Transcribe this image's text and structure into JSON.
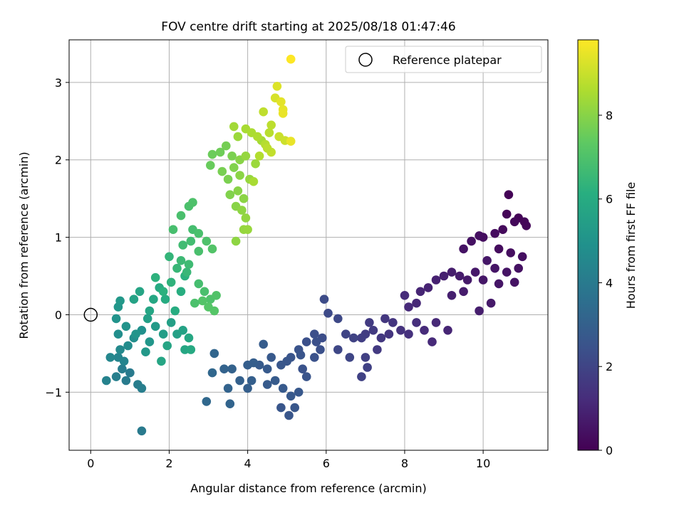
{
  "chart_data": {
    "type": "scatter",
    "title": "FOV centre drift starting at 2025/08/18 01:47:46",
    "xlabel": "Angular distance from reference (arcmin)",
    "ylabel": "Rotation from reference (arcmin)",
    "xlim": [
      -0.55,
      11.65
    ],
    "ylim": [
      -1.75,
      3.55
    ],
    "xticks": [
      0,
      2,
      4,
      6,
      8,
      10
    ],
    "yticks": [
      -1,
      0,
      1,
      2,
      3
    ],
    "xtick_labels": [
      "0",
      "2",
      "4",
      "6",
      "8",
      "10"
    ],
    "ytick_labels": [
      "−1",
      "0",
      "1",
      "2",
      "3"
    ],
    "grid": true,
    "legend": {
      "position": "top-right",
      "entries": [
        "Reference platepar"
      ]
    },
    "reference_point": {
      "x": 0,
      "y": 0
    },
    "colorbar": {
      "label": "Hours from first FF file",
      "colormap": "viridis",
      "range": [
        0,
        9.8
      ],
      "ticks": [
        0,
        2,
        4,
        6,
        8
      ],
      "tick_labels": [
        "0",
        "2",
        "4",
        "6",
        "8"
      ]
    },
    "series": [
      {
        "color_by": "hours",
        "points": [
          [
            10.65,
            1.55,
            0.05
          ],
          [
            10.6,
            1.3,
            0.1
          ],
          [
            10.9,
            1.25,
            0.1
          ],
          [
            11.05,
            1.2,
            0.15
          ],
          [
            11.1,
            1.15,
            0.15
          ],
          [
            10.8,
            1.2,
            0.2
          ],
          [
            10.5,
            1.1,
            0.25
          ],
          [
            10.3,
            1.05,
            0.3
          ],
          [
            10.0,
            1.0,
            0.35
          ],
          [
            9.9,
            1.02,
            0.4
          ],
          [
            9.7,
            0.95,
            0.45
          ],
          [
            9.5,
            0.85,
            0.5
          ],
          [
            10.4,
            0.85,
            0.3
          ],
          [
            10.7,
            0.8,
            0.35
          ],
          [
            11.0,
            0.75,
            0.4
          ],
          [
            10.9,
            0.6,
            0.45
          ],
          [
            10.6,
            0.55,
            0.5
          ],
          [
            10.3,
            0.6,
            0.55
          ],
          [
            10.1,
            0.7,
            0.6
          ],
          [
            9.8,
            0.55,
            0.65
          ],
          [
            9.6,
            0.45,
            0.7
          ],
          [
            9.4,
            0.5,
            0.75
          ],
          [
            9.2,
            0.55,
            0.8
          ],
          [
            9.0,
            0.5,
            0.85
          ],
          [
            8.8,
            0.45,
            0.9
          ],
          [
            8.6,
            0.35,
            0.95
          ],
          [
            8.4,
            0.3,
            1.0
          ],
          [
            8.3,
            0.15,
            1.1
          ],
          [
            8.1,
            0.1,
            1.15
          ],
          [
            8.0,
            0.25,
            1.2
          ],
          [
            9.2,
            0.25,
            0.85
          ],
          [
            9.5,
            0.3,
            0.75
          ],
          [
            10.0,
            0.45,
            0.6
          ],
          [
            10.4,
            0.4,
            0.55
          ],
          [
            10.8,
            0.42,
            0.5
          ],
          [
            10.2,
            0.15,
            0.7
          ],
          [
            9.9,
            0.05,
            0.8
          ],
          [
            9.1,
            -0.2,
            1.0
          ],
          [
            8.8,
            -0.1,
            1.1
          ],
          [
            8.7,
            -0.35,
            1.15
          ],
          [
            8.5,
            -0.2,
            1.2
          ],
          [
            8.3,
            -0.1,
            1.3
          ],
          [
            8.1,
            -0.25,
            1.35
          ],
          [
            7.9,
            -0.2,
            1.4
          ],
          [
            7.7,
            -0.1,
            1.5
          ],
          [
            7.5,
            -0.05,
            1.55
          ],
          [
            7.6,
            -0.25,
            1.5
          ],
          [
            7.4,
            -0.3,
            1.6
          ],
          [
            7.3,
            -0.45,
            1.65
          ],
          [
            7.2,
            -0.2,
            1.7
          ],
          [
            7.0,
            -0.25,
            1.75
          ],
          [
            6.9,
            -0.3,
            1.8
          ],
          [
            7.0,
            -0.55,
            1.85
          ],
          [
            6.9,
            -0.8,
            1.9
          ],
          [
            7.1,
            -0.1,
            1.7
          ],
          [
            6.7,
            -0.3,
            1.95
          ],
          [
            6.5,
            -0.25,
            2.0
          ],
          [
            6.3,
            -0.45,
            2.1
          ],
          [
            6.6,
            -0.55,
            2.05
          ],
          [
            7.05,
            -0.68,
            1.9
          ],
          [
            5.95,
            0.2,
            2.25
          ],
          [
            6.05,
            0.02,
            2.2
          ],
          [
            6.3,
            -0.05,
            2.15
          ],
          [
            5.9,
            -0.3,
            2.3
          ],
          [
            5.7,
            -0.25,
            2.35
          ],
          [
            5.5,
            -0.35,
            2.4
          ],
          [
            5.3,
            -0.45,
            2.5
          ],
          [
            5.1,
            -0.55,
            2.55
          ],
          [
            5.0,
            -0.6,
            2.6
          ],
          [
            4.85,
            -0.65,
            2.65
          ],
          [
            4.6,
            -0.55,
            2.7
          ],
          [
            4.5,
            -0.7,
            2.75
          ],
          [
            4.3,
            -0.65,
            2.8
          ],
          [
            4.5,
            -0.9,
            2.8
          ],
          [
            4.7,
            -0.85,
            2.78
          ],
          [
            4.9,
            -0.95,
            2.75
          ],
          [
            5.1,
            -1.05,
            2.7
          ],
          [
            5.3,
            -1.0,
            2.68
          ],
          [
            5.2,
            -1.2,
            2.65
          ],
          [
            5.05,
            -1.3,
            2.6
          ],
          [
            4.85,
            -1.2,
            2.62
          ],
          [
            5.5,
            -0.8,
            2.55
          ],
          [
            5.4,
            -0.7,
            2.5
          ],
          [
            5.7,
            -0.55,
            2.45
          ],
          [
            5.85,
            -0.45,
            2.4
          ],
          [
            4.0,
            -0.65,
            2.9
          ],
          [
            4.0,
            -0.95,
            2.95
          ],
          [
            3.8,
            -0.85,
            3.0
          ],
          [
            3.6,
            -0.7,
            3.05
          ],
          [
            3.5,
            -0.95,
            3.1
          ],
          [
            3.4,
            -0.7,
            3.1
          ],
          [
            3.55,
            -1.15,
            3.15
          ],
          [
            3.15,
            -0.5,
            3.2
          ],
          [
            3.1,
            -0.75,
            3.25
          ],
          [
            2.95,
            -1.12,
            3.3
          ],
          [
            4.1,
            -0.85,
            2.95
          ],
          [
            4.4,
            -0.38,
            2.85
          ],
          [
            5.35,
            -0.52,
            2.55
          ],
          [
            4.15,
            -0.62,
            2.92
          ],
          [
            5.75,
            -0.35,
            2.4
          ],
          [
            0.4,
            -0.85,
            4.3
          ],
          [
            0.65,
            -0.8,
            4.2
          ],
          [
            0.8,
            -0.7,
            4.1
          ],
          [
            1.0,
            -0.75,
            4.0
          ],
          [
            1.2,
            -0.9,
            4.1
          ],
          [
            1.3,
            -0.95,
            4.15
          ],
          [
            1.3,
            -1.5,
            4.0
          ],
          [
            0.9,
            -0.85,
            4.05
          ],
          [
            0.7,
            -0.55,
            4.4
          ],
          [
            0.5,
            -0.55,
            4.5
          ],
          [
            0.75,
            -0.45,
            4.6
          ],
          [
            0.95,
            -0.4,
            4.7
          ],
          [
            1.1,
            -0.3,
            4.8
          ],
          [
            1.3,
            -0.2,
            4.9
          ],
          [
            0.7,
            -0.25,
            4.8
          ],
          [
            0.65,
            -0.05,
            5.0
          ],
          [
            0.7,
            0.1,
            5.1
          ],
          [
            0.9,
            -0.15,
            5.0
          ],
          [
            1.15,
            -0.25,
            5.05
          ],
          [
            1.5,
            -0.35,
            5.1
          ],
          [
            1.4,
            -0.48,
            5.2
          ],
          [
            1.65,
            -0.15,
            5.3
          ],
          [
            1.85,
            -0.25,
            5.4
          ],
          [
            2.05,
            -0.1,
            5.5
          ],
          [
            2.2,
            -0.25,
            5.55
          ],
          [
            2.35,
            -0.2,
            5.6
          ],
          [
            1.95,
            -0.4,
            5.7
          ],
          [
            1.8,
            -0.6,
            5.75
          ],
          [
            2.4,
            -0.45,
            5.8
          ],
          [
            2.5,
            -0.3,
            5.85
          ],
          [
            1.1,
            0.2,
            5.6
          ],
          [
            1.25,
            0.3,
            5.7
          ],
          [
            1.5,
            0.05,
            5.75
          ],
          [
            1.6,
            0.2,
            5.85
          ],
          [
            1.75,
            0.35,
            5.95
          ],
          [
            1.9,
            0.2,
            6.0
          ],
          [
            2.15,
            0.05,
            6.05
          ],
          [
            2.3,
            0.3,
            6.1
          ],
          [
            2.4,
            0.5,
            6.2
          ],
          [
            1.65,
            0.48,
            6.25
          ],
          [
            2.05,
            0.42,
            6.3
          ],
          [
            0.75,
            0.18,
            5.2
          ],
          [
            1.45,
            -0.05,
            5.5
          ],
          [
            0.85,
            -0.6,
            4.4
          ],
          [
            2.55,
            -0.45,
            5.9
          ],
          [
            2.0,
            0.75,
            6.4
          ],
          [
            2.2,
            0.6,
            6.5
          ],
          [
            2.3,
            0.7,
            6.6
          ],
          [
            2.5,
            0.65,
            6.65
          ],
          [
            2.35,
            0.9,
            6.7
          ],
          [
            2.55,
            0.95,
            6.75
          ],
          [
            2.6,
            1.1,
            6.8
          ],
          [
            2.1,
            1.1,
            6.85
          ],
          [
            2.3,
            1.28,
            6.9
          ],
          [
            2.5,
            1.4,
            6.95
          ],
          [
            2.6,
            1.45,
            7.0
          ],
          [
            2.75,
            0.4,
            6.8
          ],
          [
            2.9,
            0.3,
            6.9
          ],
          [
            3.05,
            0.2,
            7.0
          ],
          [
            3.2,
            0.25,
            7.05
          ],
          [
            2.85,
            0.18,
            7.1
          ],
          [
            3.0,
            0.1,
            7.15
          ],
          [
            2.75,
            0.82,
            6.9
          ],
          [
            2.95,
            0.95,
            7.0
          ],
          [
            3.1,
            0.85,
            7.1
          ],
          [
            3.15,
            0.05,
            7.15
          ],
          [
            2.65,
            0.15,
            6.95
          ],
          [
            1.85,
            0.3,
            6.2
          ],
          [
            2.75,
            1.05,
            6.9
          ],
          [
            2.45,
            0.55,
            6.5
          ],
          [
            3.3,
            2.1,
            7.6
          ],
          [
            3.45,
            2.18,
            7.7
          ],
          [
            3.6,
            2.05,
            7.8
          ],
          [
            3.35,
            1.85,
            7.75
          ],
          [
            3.5,
            1.75,
            7.8
          ],
          [
            3.65,
            1.9,
            7.9
          ],
          [
            3.8,
            2.0,
            8.0
          ],
          [
            3.55,
            1.55,
            7.9
          ],
          [
            3.75,
            1.6,
            8.0
          ],
          [
            3.9,
            1.5,
            8.05
          ],
          [
            3.7,
            1.4,
            8.0
          ],
          [
            3.85,
            1.35,
            8.1
          ],
          [
            3.95,
            1.25,
            8.15
          ],
          [
            3.9,
            1.1,
            8.2
          ],
          [
            4.0,
            1.1,
            8.25
          ],
          [
            3.7,
            0.95,
            8.1
          ],
          [
            3.1,
            2.07,
            7.55
          ],
          [
            3.05,
            1.93,
            7.5
          ],
          [
            4.05,
            1.75,
            8.2
          ],
          [
            4.2,
            1.95,
            8.3
          ],
          [
            4.35,
            2.25,
            8.45
          ],
          [
            3.95,
            2.4,
            8.5
          ],
          [
            4.1,
            2.35,
            8.55
          ],
          [
            4.25,
            2.3,
            8.6
          ],
          [
            4.45,
            2.2,
            8.7
          ],
          [
            4.55,
            2.35,
            8.75
          ],
          [
            4.6,
            2.45,
            8.8
          ],
          [
            4.3,
            2.05,
            8.65
          ],
          [
            4.15,
            1.72,
            8.5
          ],
          [
            4.4,
            2.62,
            8.85
          ],
          [
            3.65,
            2.43,
            8.4
          ],
          [
            3.75,
            2.3,
            8.3
          ],
          [
            4.6,
            2.1,
            8.9
          ],
          [
            4.8,
            2.3,
            9.0
          ],
          [
            4.95,
            2.25,
            9.05
          ],
          [
            4.7,
            2.8,
            9.2
          ],
          [
            4.75,
            2.95,
            9.3
          ],
          [
            4.85,
            2.75,
            9.4
          ],
          [
            4.9,
            2.65,
            9.45
          ],
          [
            4.9,
            2.6,
            9.5
          ],
          [
            5.1,
            2.24,
            9.5
          ],
          [
            5.1,
            3.3,
            9.8
          ],
          [
            3.95,
            2.05,
            8.2
          ],
          [
            3.8,
            1.8,
            8.05
          ],
          [
            4.5,
            2.15,
            8.8
          ]
        ]
      }
    ]
  }
}
